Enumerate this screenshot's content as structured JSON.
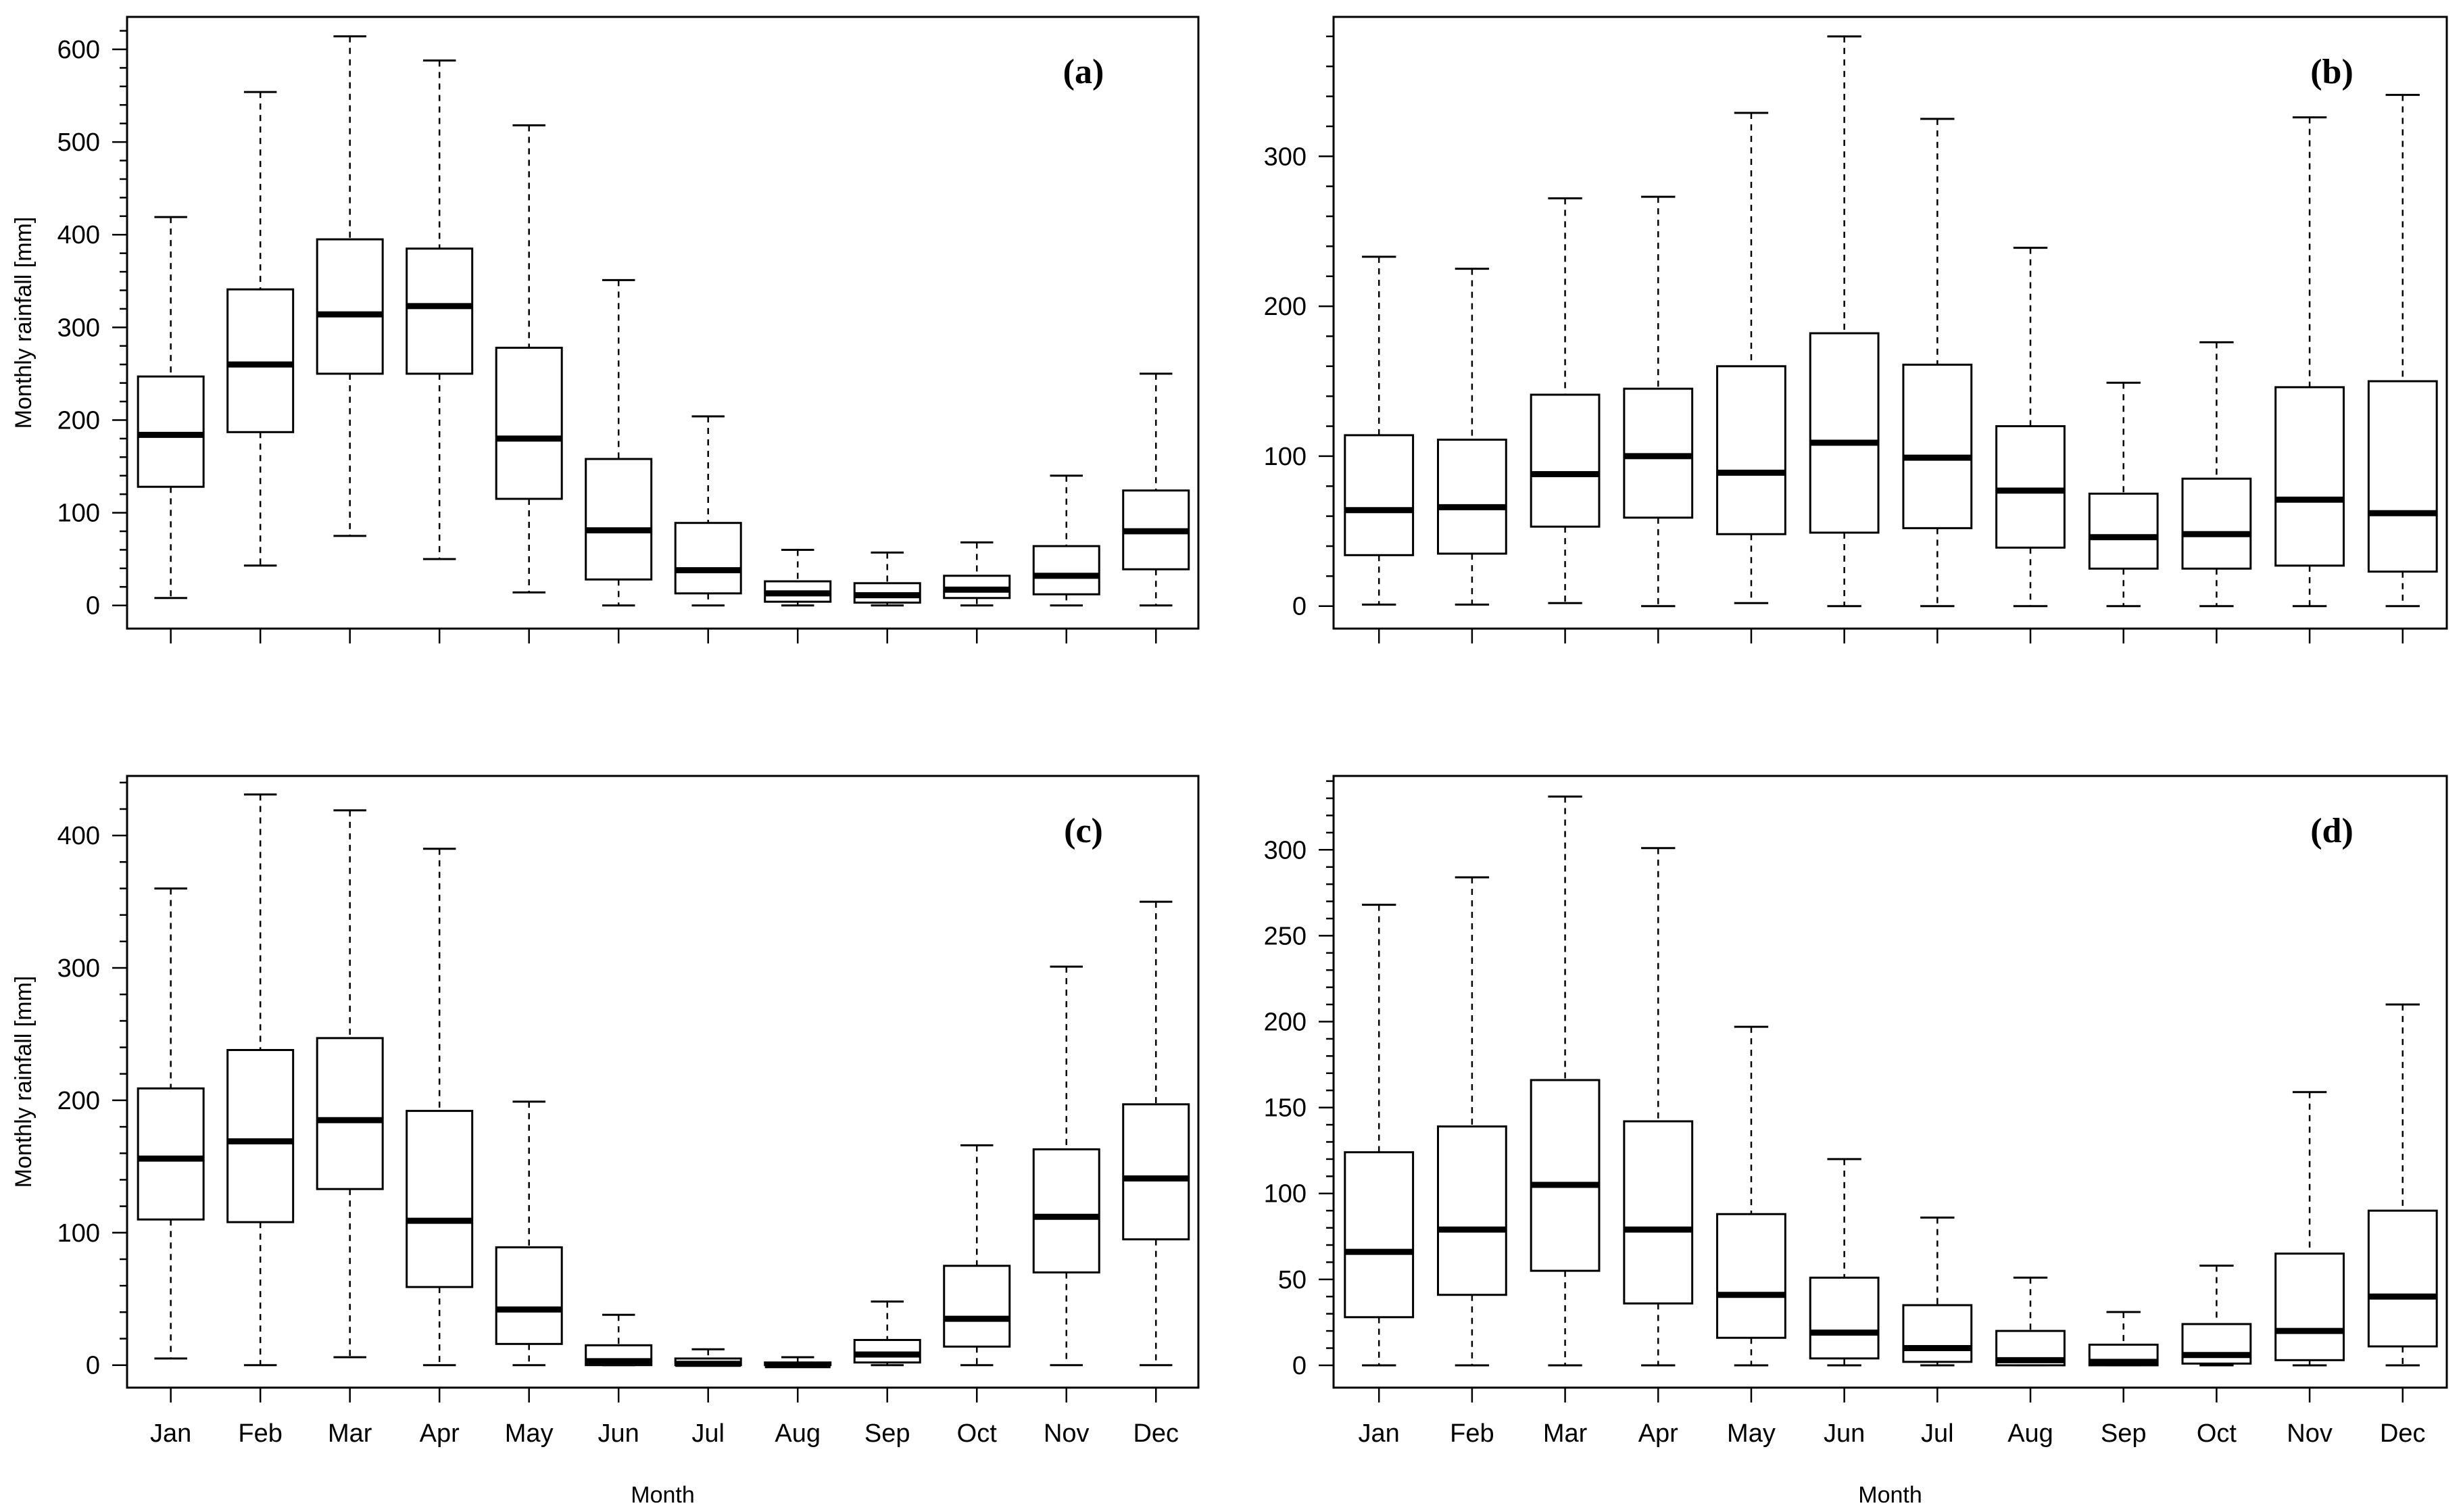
{
  "figure": {
    "xlabel": "Month",
    "ylabel": "Monthly rainfall [mm]"
  },
  "chart_data": [
    {
      "type": "boxplot",
      "panel": "(a)",
      "title": "",
      "xlabel": "",
      "ylabel": "Monthly rainfall [mm]",
      "categories": [
        "Jan",
        "Feb",
        "Mar",
        "Apr",
        "May",
        "Jun",
        "Jul",
        "Aug",
        "Sep",
        "Oct",
        "Nov",
        "Dec"
      ],
      "ylim": [
        -25,
        635
      ],
      "yticks": [
        0,
        100,
        200,
        300,
        400,
        500,
        600
      ],
      "boxes": [
        {
          "min": 8,
          "q1": 128,
          "median": 184,
          "q3": 247,
          "max": 419
        },
        {
          "min": 43,
          "q1": 187,
          "median": 260,
          "q3": 341,
          "max": 554
        },
        {
          "min": 75,
          "q1": 250,
          "median": 314,
          "q3": 395,
          "max": 614
        },
        {
          "min": 50,
          "q1": 250,
          "median": 323,
          "q3": 385,
          "max": 588
        },
        {
          "min": 14,
          "q1": 115,
          "median": 180,
          "q3": 278,
          "max": 518
        },
        {
          "min": 0,
          "q1": 28,
          "median": 81,
          "q3": 158,
          "max": 351
        },
        {
          "min": 0,
          "q1": 13,
          "median": 38,
          "q3": 89,
          "max": 204
        },
        {
          "min": 0,
          "q1": 4,
          "median": 13,
          "q3": 26,
          "max": 60
        },
        {
          "min": 0,
          "q1": 3,
          "median": 11,
          "q3": 24,
          "max": 57
        },
        {
          "min": 0,
          "q1": 8,
          "median": 17,
          "q3": 32,
          "max": 68
        },
        {
          "min": 0,
          "q1": 12,
          "median": 32,
          "q3": 64,
          "max": 140
        },
        {
          "min": 0,
          "q1": 39,
          "median": 80,
          "q3": 124,
          "max": 250
        }
      ]
    },
    {
      "type": "boxplot",
      "panel": "(b)",
      "title": "",
      "xlabel": "",
      "ylabel": "",
      "categories": [
        "Jan",
        "Feb",
        "Mar",
        "Apr",
        "May",
        "Jun",
        "Jul",
        "Aug",
        "Sep",
        "Oct",
        "Nov",
        "Dec"
      ],
      "ylim": [
        -15,
        393
      ],
      "yticks": [
        0,
        100,
        200,
        300
      ],
      "boxes": [
        {
          "min": 1,
          "q1": 34,
          "median": 64,
          "q3": 114,
          "max": 233
        },
        {
          "min": 1,
          "q1": 35,
          "median": 66,
          "q3": 111,
          "max": 225
        },
        {
          "min": 2,
          "q1": 53,
          "median": 88,
          "q3": 141,
          "max": 272
        },
        {
          "min": 0,
          "q1": 59,
          "median": 100,
          "q3": 145,
          "max": 273
        },
        {
          "min": 2,
          "q1": 48,
          "median": 89,
          "q3": 160,
          "max": 329
        },
        {
          "min": 0,
          "q1": 49,
          "median": 109,
          "q3": 182,
          "max": 380
        },
        {
          "min": 0,
          "q1": 52,
          "median": 99,
          "q3": 161,
          "max": 325
        },
        {
          "min": 0,
          "q1": 39,
          "median": 77,
          "q3": 120,
          "max": 239
        },
        {
          "min": 0,
          "q1": 25,
          "median": 46,
          "q3": 75,
          "max": 149
        },
        {
          "min": 0,
          "q1": 25,
          "median": 48,
          "q3": 85,
          "max": 176
        },
        {
          "min": 0,
          "q1": 27,
          "median": 71,
          "q3": 146,
          "max": 326
        },
        {
          "min": 0,
          "q1": 23,
          "median": 62,
          "q3": 150,
          "max": 341
        }
      ]
    },
    {
      "type": "boxplot",
      "panel": "(c)",
      "title": "",
      "xlabel": "Month",
      "ylabel": "Monthly rainfall [mm]",
      "categories": [
        "Jan",
        "Feb",
        "Mar",
        "Apr",
        "May",
        "Jun",
        "Jul",
        "Aug",
        "Sep",
        "Oct",
        "Nov",
        "Dec"
      ],
      "ylim": [
        -17,
        445
      ],
      "yticks": [
        0,
        100,
        200,
        300,
        400
      ],
      "boxes": [
        {
          "min": 5,
          "q1": 110,
          "median": 156,
          "q3": 209,
          "max": 360
        },
        {
          "min": 0,
          "q1": 108,
          "median": 169,
          "q3": 238,
          "max": 431
        },
        {
          "min": 6,
          "q1": 133,
          "median": 185,
          "q3": 247,
          "max": 419
        },
        {
          "min": 0,
          "q1": 59,
          "median": 109,
          "q3": 192,
          "max": 390
        },
        {
          "min": 0,
          "q1": 16,
          "median": 42,
          "q3": 89,
          "max": 199
        },
        {
          "min": 0,
          "q1": 0,
          "median": 3,
          "q3": 15,
          "max": 38
        },
        {
          "min": 0,
          "q1": 0,
          "median": 1,
          "q3": 5,
          "max": 12
        },
        {
          "min": 0,
          "q1": 0,
          "median": 0,
          "q3": 2,
          "max": 6
        },
        {
          "min": 0,
          "q1": 2,
          "median": 8,
          "q3": 19,
          "max": 48
        },
        {
          "min": 0,
          "q1": 14,
          "median": 35,
          "q3": 75,
          "max": 166
        },
        {
          "min": 0,
          "q1": 70,
          "median": 112,
          "q3": 163,
          "max": 301
        },
        {
          "min": 0,
          "q1": 95,
          "median": 141,
          "q3": 197,
          "max": 350
        }
      ]
    },
    {
      "type": "boxplot",
      "panel": "(d)",
      "title": "",
      "xlabel": "Month",
      "ylabel": "",
      "categories": [
        "Jan",
        "Feb",
        "Mar",
        "Apr",
        "May",
        "Jun",
        "Jul",
        "Aug",
        "Sep",
        "Oct",
        "Nov",
        "Dec"
      ],
      "ylim": [
        -13,
        343
      ],
      "yticks": [
        0,
        50,
        100,
        150,
        200,
        250,
        300
      ],
      "boxes": [
        {
          "min": 0,
          "q1": 28,
          "median": 66,
          "q3": 124,
          "max": 268
        },
        {
          "min": 0,
          "q1": 41,
          "median": 79,
          "q3": 139,
          "max": 284
        },
        {
          "min": 0,
          "q1": 55,
          "median": 105,
          "q3": 166,
          "max": 331
        },
        {
          "min": 0,
          "q1": 36,
          "median": 79,
          "q3": 142,
          "max": 301
        },
        {
          "min": 0,
          "q1": 16,
          "median": 41,
          "q3": 88,
          "max": 197
        },
        {
          "min": 0,
          "q1": 4,
          "median": 19,
          "q3": 51,
          "max": 120
        },
        {
          "min": 0,
          "q1": 2,
          "median": 10,
          "q3": 35,
          "max": 86
        },
        {
          "min": 0,
          "q1": 0,
          "median": 3,
          "q3": 20,
          "max": 51
        },
        {
          "min": 0,
          "q1": 0,
          "median": 2,
          "q3": 12,
          "max": 31
        },
        {
          "min": 0,
          "q1": 1,
          "median": 6,
          "q3": 24,
          "max": 58
        },
        {
          "min": 0,
          "q1": 3,
          "median": 20,
          "q3": 65,
          "max": 159
        },
        {
          "min": 0,
          "q1": 11,
          "median": 40,
          "q3": 90,
          "max": 210
        }
      ]
    }
  ]
}
